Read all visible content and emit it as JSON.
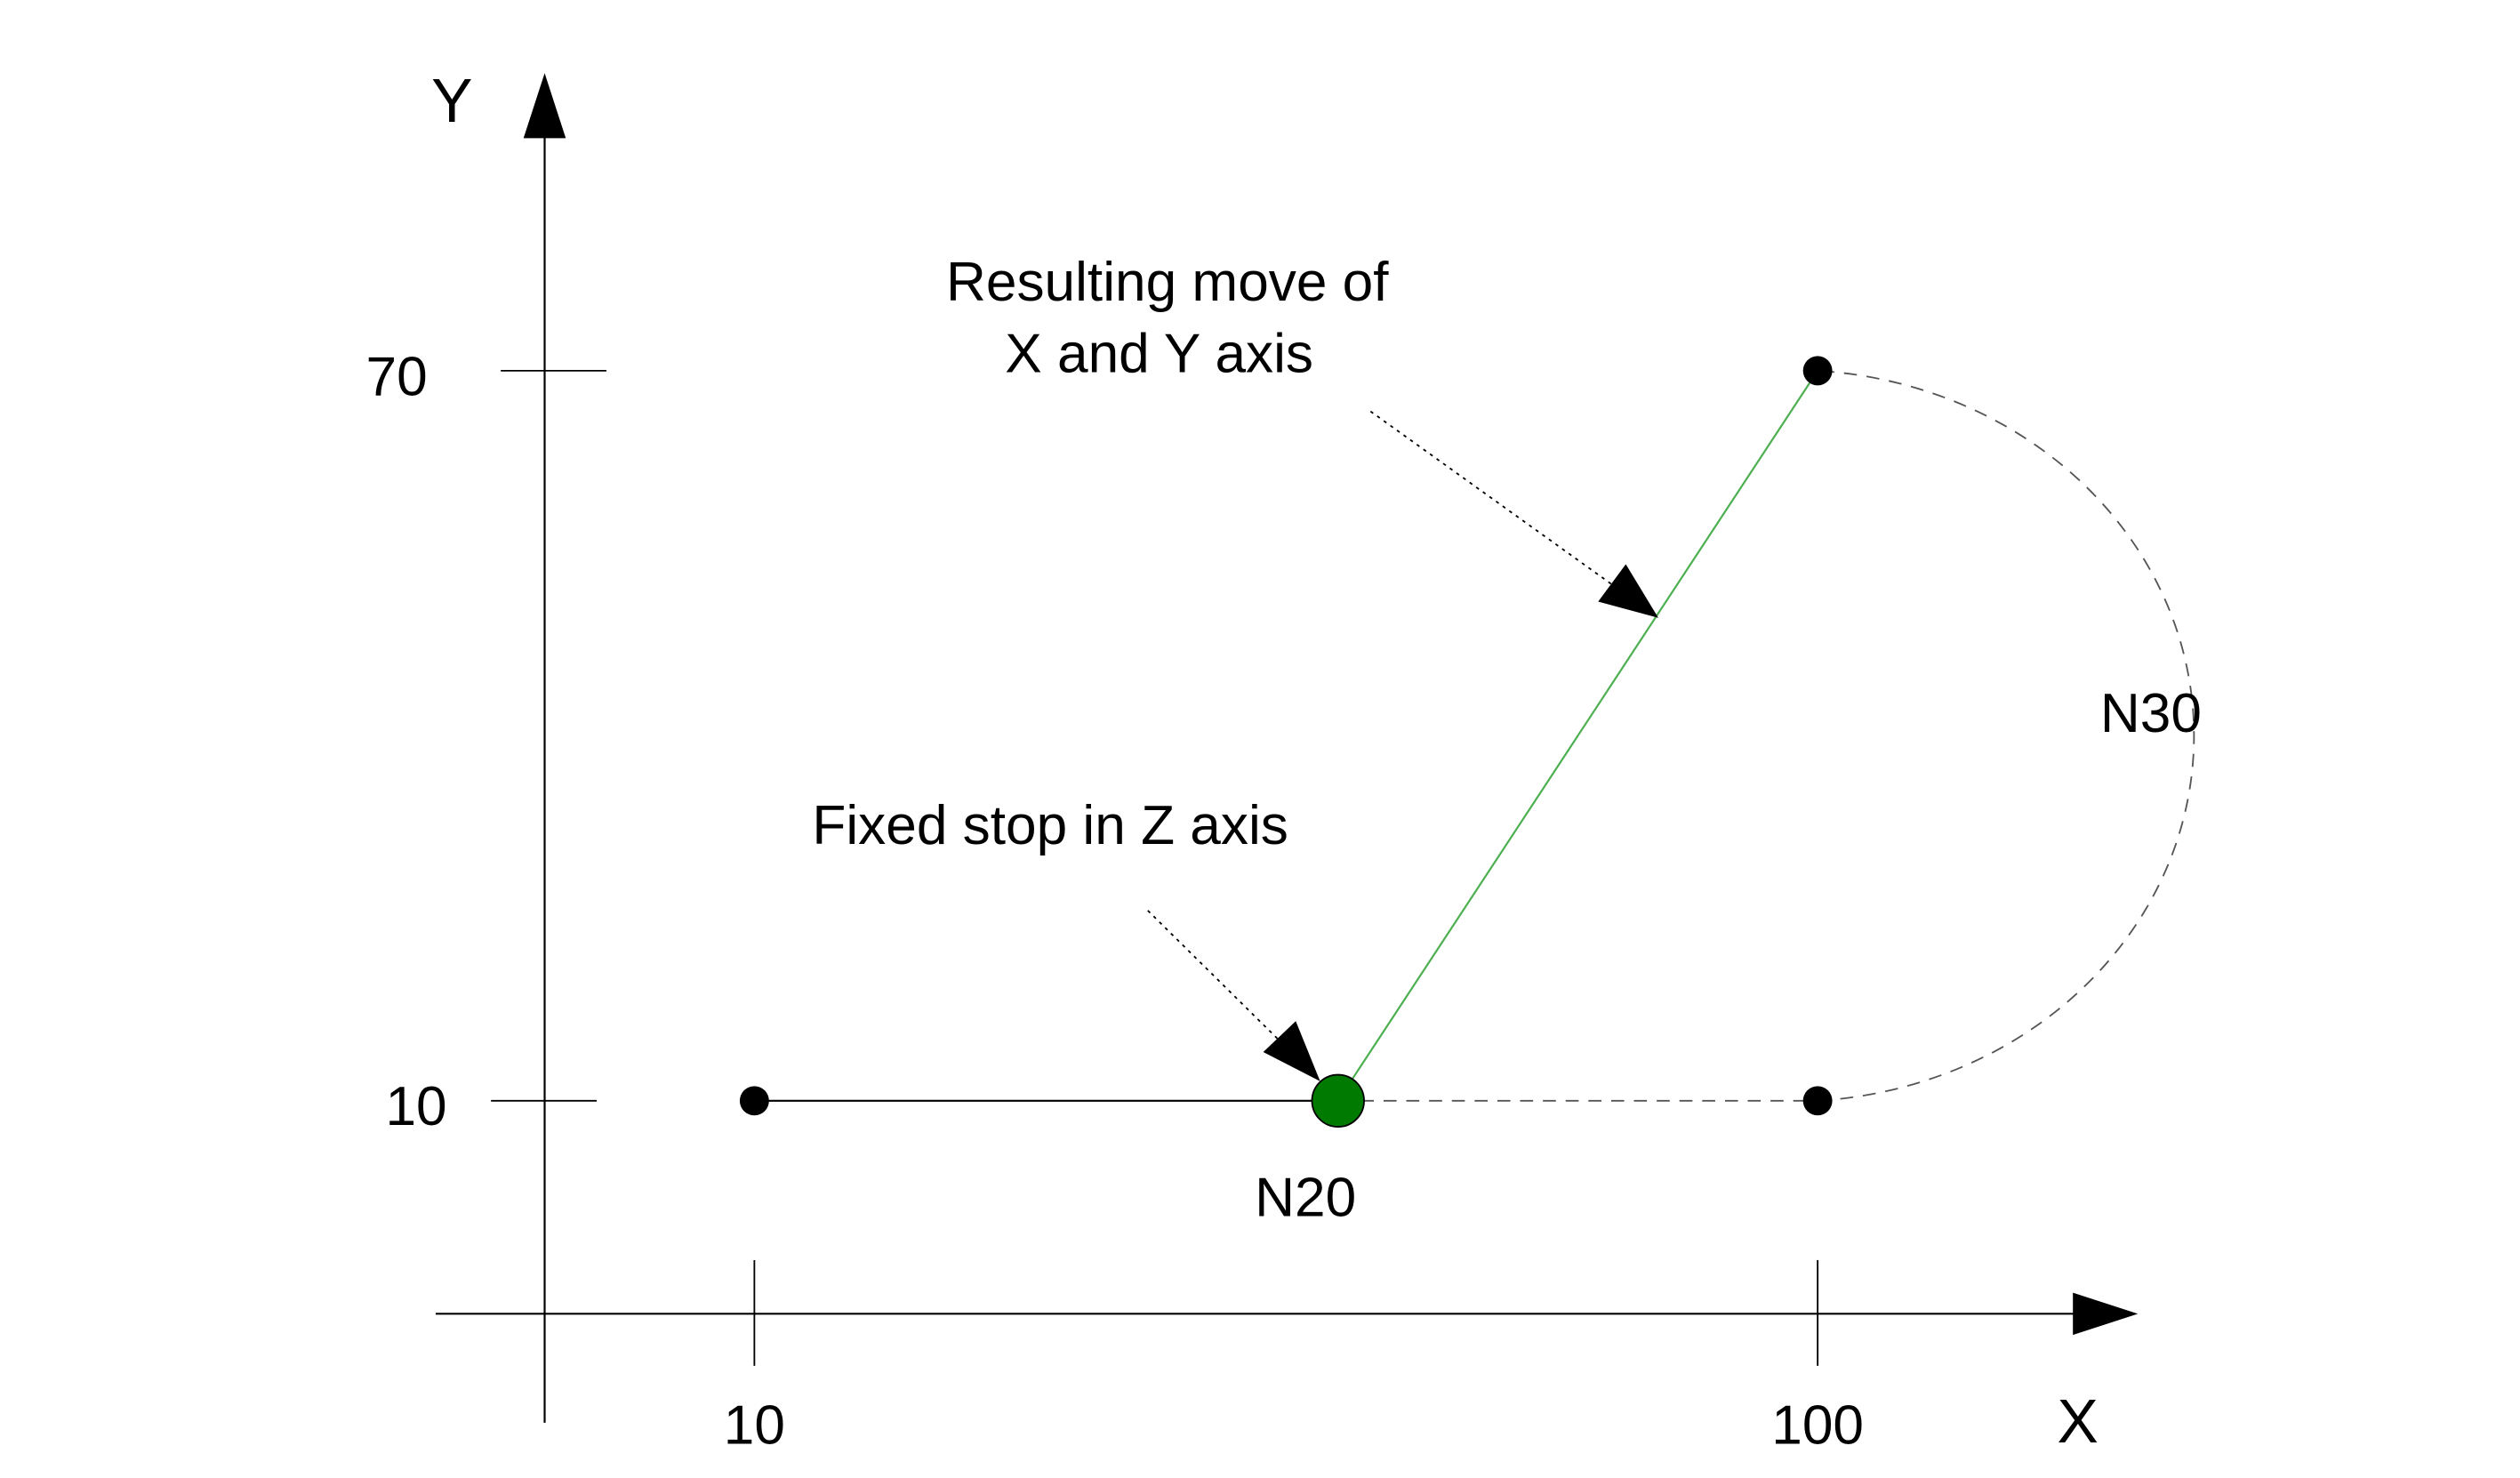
{
  "axes": {
    "x_label": "X",
    "y_label": "Y",
    "x_ticks": [
      "10",
      "100"
    ],
    "y_ticks": [
      "70",
      "10"
    ]
  },
  "annotations": {
    "resulting_move_line1": "Resulting move of",
    "resulting_move_line2": "X and Y axis",
    "fixed_stop": "Fixed stop in Z axis",
    "n20": "N20",
    "n30": "N30"
  },
  "colors": {
    "green_point": "#007a00",
    "green_line": "#4caf50",
    "black": "#000000",
    "dashed": "#555555"
  }
}
